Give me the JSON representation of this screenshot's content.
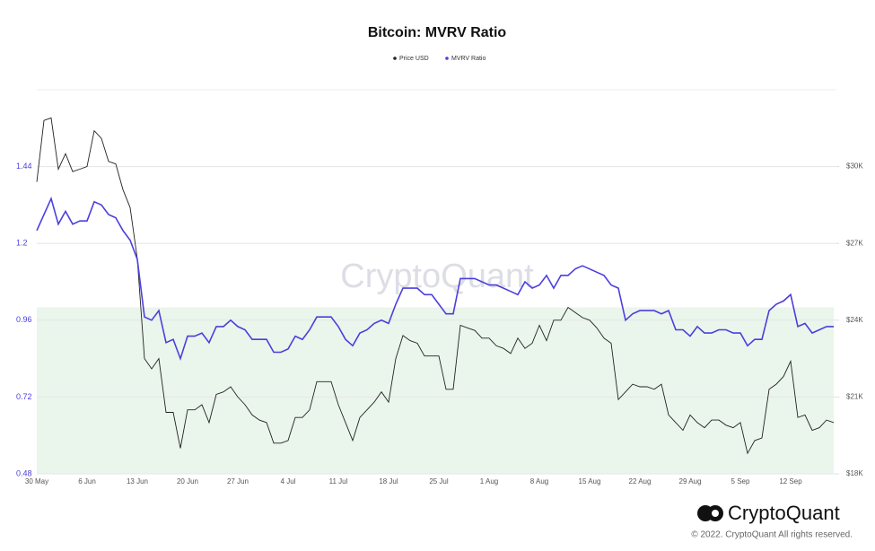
{
  "chart_data": {
    "type": "line",
    "title": "Bitcoin: MVRV Ratio",
    "categories": [
      "30 May",
      null,
      null,
      null,
      null,
      null,
      null,
      "6 Jun",
      null,
      null,
      null,
      null,
      null,
      null,
      "13 Jun",
      null,
      null,
      null,
      null,
      null,
      null,
      "20 Jun",
      null,
      null,
      null,
      null,
      null,
      null,
      "27 Jun",
      null,
      null,
      null,
      null,
      null,
      null,
      "4 Jul",
      null,
      null,
      null,
      null,
      null,
      null,
      "11 Jul",
      null,
      null,
      null,
      null,
      null,
      null,
      "18 Jul",
      null,
      null,
      null,
      null,
      null,
      null,
      "25 Jul",
      null,
      null,
      null,
      null,
      null,
      null,
      "1 Aug",
      null,
      null,
      null,
      null,
      null,
      null,
      "8 Aug",
      null,
      null,
      null,
      null,
      null,
      null,
      "15 Aug",
      null,
      null,
      null,
      null,
      null,
      null,
      "22 Aug",
      null,
      null,
      null,
      null,
      null,
      null,
      "29 Aug",
      null,
      null,
      null,
      null,
      null,
      null,
      "5 Sep",
      null,
      null,
      null,
      null,
      null,
      null,
      "12 Sep",
      null,
      null,
      null,
      null,
      null,
      null
    ],
    "series": [
      {
        "name": "Price USD",
        "color": "#222222",
        "axis": "y2",
        "values": [
          29400,
          31800,
          31900,
          29900,
          30500,
          29800,
          29900,
          30000,
          31400,
          31100,
          30200,
          30100,
          29100,
          28400,
          26400,
          22500,
          22100,
          22500,
          20400,
          20400,
          19000,
          20500,
          20500,
          20700,
          20000,
          21100,
          21200,
          21400,
          21000,
          20700,
          20300,
          20100,
          20000,
          19200,
          19200,
          19300,
          20200,
          20200,
          20500,
          21600,
          21600,
          21600,
          20700,
          20000,
          19300,
          20200,
          20500,
          20800,
          21200,
          20800,
          22500,
          23400,
          23200,
          23100,
          22600,
          22600,
          22600,
          21300,
          21300,
          23800,
          23700,
          23600,
          23300,
          23300,
          23000,
          22900,
          22700,
          23300,
          22900,
          23100,
          23800,
          23200,
          24000,
          24000,
          24500,
          24300,
          24100,
          24000,
          23700,
          23300,
          23100,
          20900,
          21200,
          21500,
          21400,
          21400,
          21300,
          21500,
          20300,
          20000,
          19700,
          20300,
          20000,
          19800,
          20100,
          20100,
          19900,
          19800,
          20000,
          18800,
          19300,
          19400,
          21300,
          21500,
          21800,
          22400,
          20200,
          20300,
          19700,
          19800,
          20100,
          20000
        ]
      },
      {
        "name": "MVRV Ratio",
        "color": "#4b3fdc",
        "values": [
          1.24,
          1.29,
          1.34,
          1.26,
          1.3,
          1.26,
          1.27,
          1.27,
          1.33,
          1.32,
          1.29,
          1.28,
          1.24,
          1.21,
          1.15,
          0.97,
          0.96,
          0.99,
          0.89,
          0.9,
          0.84,
          0.91,
          0.91,
          0.92,
          0.89,
          0.94,
          0.94,
          0.96,
          0.94,
          0.93,
          0.9,
          0.9,
          0.9,
          0.86,
          0.86,
          0.87,
          0.91,
          0.9,
          0.93,
          0.97,
          0.97,
          0.97,
          0.94,
          0.9,
          0.88,
          0.92,
          0.93,
          0.95,
          0.96,
          0.95,
          1.01,
          1.06,
          1.06,
          1.06,
          1.04,
          1.04,
          1.01,
          0.98,
          0.98,
          1.09,
          1.09,
          1.09,
          1.08,
          1.07,
          1.07,
          1.06,
          1.05,
          1.04,
          1.08,
          1.06,
          1.07,
          1.1,
          1.06,
          1.1,
          1.1,
          1.12,
          1.13,
          1.12,
          1.11,
          1.1,
          1.07,
          1.06,
          0.96,
          0.98,
          0.99,
          0.99,
          0.99,
          0.98,
          0.99,
          0.93,
          0.93,
          0.91,
          0.94,
          0.92,
          0.92,
          0.93,
          0.93,
          0.92,
          0.92,
          0.88,
          0.9,
          0.9,
          0.99,
          1.01,
          1.02,
          1.04,
          0.94,
          0.95,
          0.92,
          0.93,
          0.94,
          0.94
        ]
      }
    ],
    "ylim": [
      0.48,
      1.68
    ],
    "yticks": [
      0.48,
      0.72,
      0.96,
      1.2,
      1.44
    ],
    "y2lim": [
      18000,
      33000
    ],
    "y2ticks": [
      {
        "value": 18000,
        "label": "$18K"
      },
      {
        "value": 21000,
        "label": "$21K"
      },
      {
        "value": 24000,
        "label": "$24K"
      },
      {
        "value": 27000,
        "label": "$27K"
      },
      {
        "value": 30000,
        "label": "$30K"
      }
    ],
    "shaded_range": [
      0.48,
      1
    ],
    "shaded_color": "#eaf5ec",
    "grid": true,
    "legend": "top",
    "watermark": "CryptoQuant",
    "brand": "CryptoQuant",
    "copyright": "© 2022. CryptoQuant All rights reserved."
  }
}
